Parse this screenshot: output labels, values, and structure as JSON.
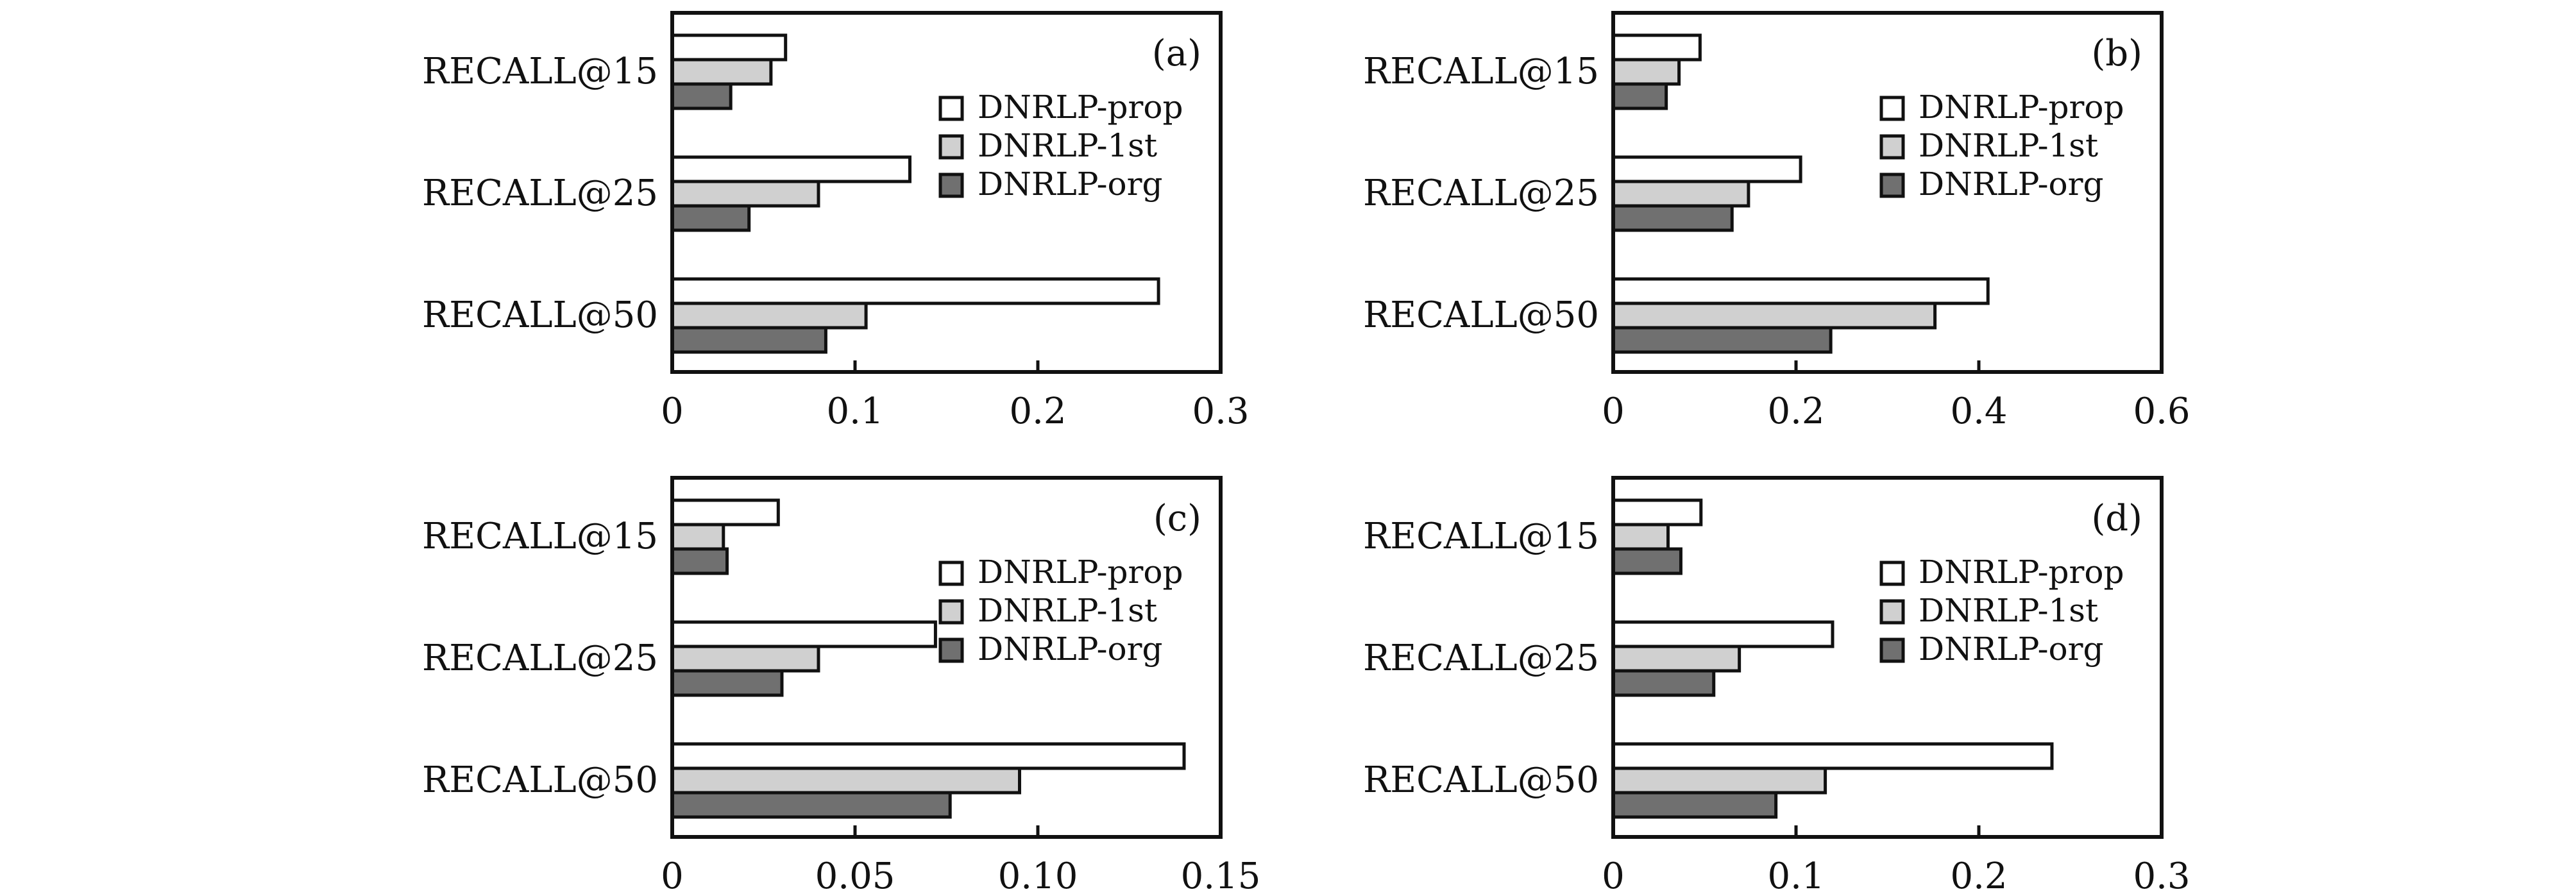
{
  "figure": {
    "panel_count": 4
  },
  "series_colors": {
    "DNRLP-prop": "#ffffff",
    "DNRLP-1st": "#d0d0d0",
    "DNRLP-org": "#707070"
  },
  "chart_data": [
    {
      "type": "bar",
      "orientation": "horizontal",
      "panel_label": "(a)",
      "categories": [
        "RECALL@15",
        "RECALL@25",
        "RECALL@50"
      ],
      "series": [
        {
          "name": "DNRLP-prop",
          "values": [
            0.062,
            0.13,
            0.266
          ]
        },
        {
          "name": "DNRLP-1st",
          "values": [
            0.054,
            0.08,
            0.106
          ]
        },
        {
          "name": "DNRLP-org",
          "values": [
            0.032,
            0.042,
            0.084
          ]
        }
      ],
      "xlim": [
        0,
        0.3
      ],
      "xticks": [
        "0",
        "0.1",
        "0.2",
        "0.3"
      ],
      "xtick_values": [
        0,
        0.1,
        0.2,
        0.3
      ],
      "legend": "right",
      "grid": false
    },
    {
      "type": "bar",
      "orientation": "horizontal",
      "panel_label": "(b)",
      "categories": [
        "RECALL@15",
        "RECALL@25",
        "RECALL@50"
      ],
      "series": [
        {
          "name": "DNRLP-prop",
          "values": [
            0.095,
            0.205,
            0.41
          ]
        },
        {
          "name": "DNRLP-1st",
          "values": [
            0.072,
            0.148,
            0.352
          ]
        },
        {
          "name": "DNRLP-org",
          "values": [
            0.058,
            0.13,
            0.238
          ]
        }
      ],
      "xlim": [
        0,
        0.6
      ],
      "xticks": [
        "0",
        "0.2",
        "0.4",
        "0.6"
      ],
      "xtick_values": [
        0,
        0.2,
        0.4,
        0.6
      ],
      "legend": "right",
      "grid": false
    },
    {
      "type": "bar",
      "orientation": "horizontal",
      "panel_label": "(c)",
      "categories": [
        "RECALL@15",
        "RECALL@25",
        "RECALL@50"
      ],
      "series": [
        {
          "name": "DNRLP-prop",
          "values": [
            0.029,
            0.072,
            0.14
          ]
        },
        {
          "name": "DNRLP-1st",
          "values": [
            0.014,
            0.04,
            0.095
          ]
        },
        {
          "name": "DNRLP-org",
          "values": [
            0.015,
            0.03,
            0.076
          ]
        }
      ],
      "xlim": [
        0,
        0.15
      ],
      "xticks": [
        "0",
        "0.05",
        "0.10",
        "0.15"
      ],
      "xtick_values": [
        0,
        0.05,
        0.1,
        0.15
      ],
      "legend": "right",
      "grid": false
    },
    {
      "type": "bar",
      "orientation": "horizontal",
      "panel_label": "(d)",
      "categories": [
        "RECALL@15",
        "RECALL@25",
        "RECALL@50"
      ],
      "series": [
        {
          "name": "DNRLP-prop",
          "values": [
            0.048,
            0.12,
            0.24
          ]
        },
        {
          "name": "DNRLP-1st",
          "values": [
            0.03,
            0.069,
            0.116
          ]
        },
        {
          "name": "DNRLP-org",
          "values": [
            0.037,
            0.055,
            0.089
          ]
        }
      ],
      "xlim": [
        0,
        0.3
      ],
      "xticks": [
        "0",
        "0.1",
        "0.2",
        "0.3"
      ],
      "xtick_values": [
        0,
        0.1,
        0.2,
        0.3
      ],
      "legend": "right",
      "grid": false
    }
  ]
}
